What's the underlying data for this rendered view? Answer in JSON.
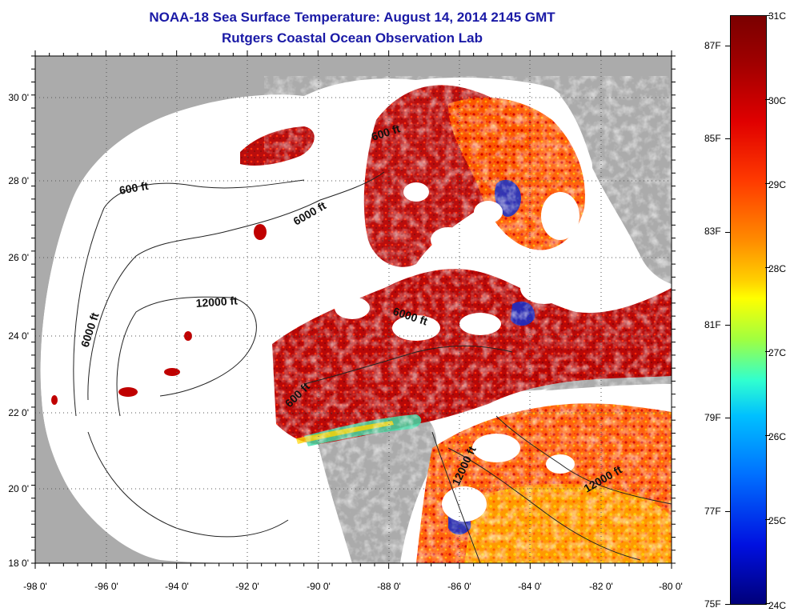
{
  "title": {
    "line1": "NOAA-18 Sea Surface Temperature:  August 14, 2014 2145 GMT",
    "line2": "Rutgers Coastal Ocean Observation Lab"
  },
  "axes": {
    "lon_labels": [
      "-98 0'",
      "-96 0'",
      "-94 0'",
      "-92 0'",
      "-90 0'",
      "-88 0'",
      "-86 0'",
      "-84 0'",
      "-82 0'",
      "-80 0'"
    ],
    "lat_labels": [
      "30 0'",
      "28 0'",
      "26 0'",
      "24 0'",
      "22 0'",
      "20 0'",
      "18 0'"
    ]
  },
  "contour_labels": [
    "600 ft",
    "600 ft",
    "6000 ft",
    "12000 ft",
    "6000 ft",
    "6000 ft",
    "600 ft",
    "12000 ft",
    "12000 ft"
  ],
  "colorbar": {
    "celsius": [
      "31C",
      "30C",
      "29C",
      "28C",
      "27C",
      "26C",
      "25C",
      "24C"
    ],
    "fahrenheit": [
      "87F",
      "85F",
      "83F",
      "81F",
      "79F",
      "77F",
      "75F"
    ]
  },
  "colors": {
    "title": "#1a1aa6",
    "land": "#ababab",
    "nodata": "#ffffff",
    "warm": "#b00000"
  }
}
